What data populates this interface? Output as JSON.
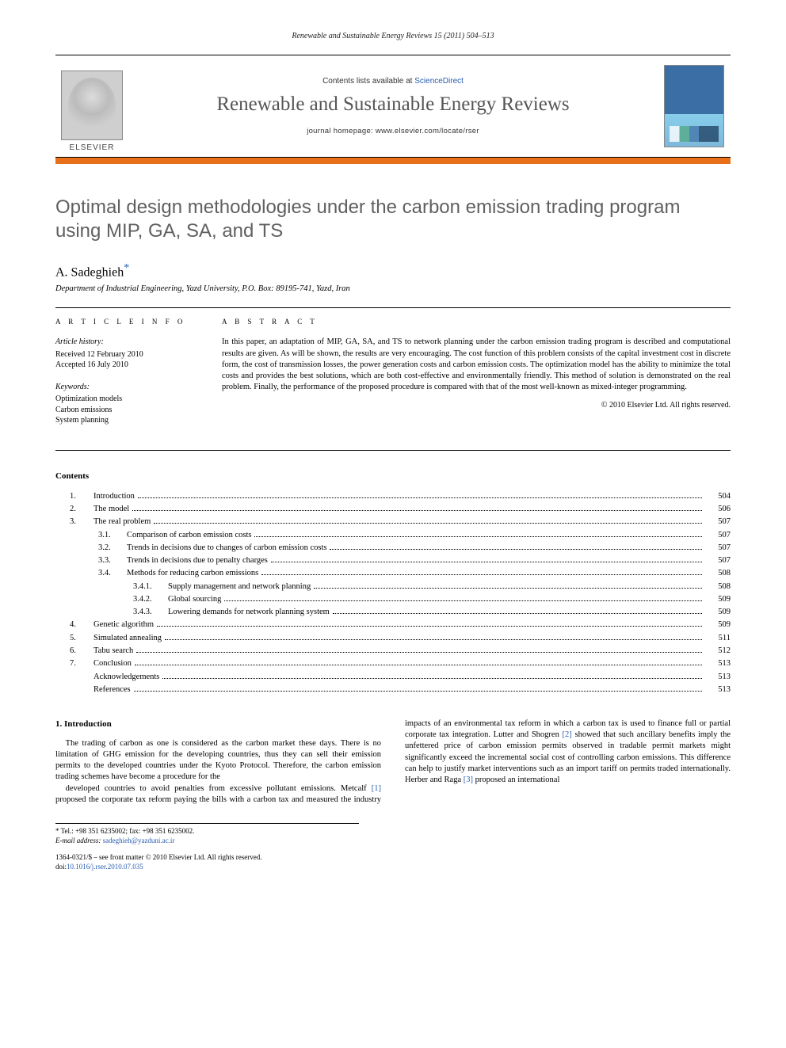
{
  "running_header": "Renewable and Sustainable Energy Reviews 15 (2011) 504–513",
  "masthead": {
    "publisher": "ELSEVIER",
    "contents_prefix": "Contents lists available at ",
    "contents_link": "ScienceDirect",
    "journal_name": "Renewable and Sustainable Energy Reviews",
    "homepage_prefix": "journal homepage: ",
    "homepage_url": "www.elsevier.com/locate/rser"
  },
  "title": "Optimal design methodologies under the carbon emission trading program using MIP, GA, SA, and TS",
  "author": "A. Sadeghieh",
  "corr_marker": "*",
  "affiliation": "Department of Industrial Engineering, Yazd University, P.O. Box: 89195-741, Yazd, Iran",
  "info": {
    "heading": "A R T I C L E   I N F O",
    "history_label": "Article history:",
    "received": "Received 12 February 2010",
    "accepted": "Accepted 16 July 2010",
    "keywords_label": "Keywords:",
    "keywords": [
      "Optimization models",
      "Carbon emissions",
      "System planning"
    ]
  },
  "abstract": {
    "heading": "A B S T R A C T",
    "text": "In this paper, an adaptation of MIP, GA, SA, and TS to network planning under the carbon emission trading program is described and computational results are given. As will be shown, the results are very encouraging. The cost function of this problem consists of the capital investment cost in discrete form, the cost of transmission losses, the power generation costs and carbon emission costs. The optimization model has the ability to minimize the total costs and provides the best solutions, which are both cost-effective and environmentally friendly. This method of solution is demonstrated on the real problem. Finally, the performance of the proposed procedure is compared with that of the most well-known as mixed-integer programming.",
    "copyright": "© 2010 Elsevier Ltd. All rights reserved."
  },
  "contents_heading": "Contents",
  "toc": [
    {
      "lvl": 1,
      "num": "1.",
      "label": "Introduction",
      "page": "504"
    },
    {
      "lvl": 1,
      "num": "2.",
      "label": "The model",
      "page": "506"
    },
    {
      "lvl": 1,
      "num": "3.",
      "label": "The real problem",
      "page": "507"
    },
    {
      "lvl": 2,
      "num": "3.1.",
      "label": "Comparison of carbon emission costs",
      "page": "507"
    },
    {
      "lvl": 2,
      "num": "3.2.",
      "label": "Trends in decisions due to changes of carbon emission costs",
      "page": "507"
    },
    {
      "lvl": 2,
      "num": "3.3.",
      "label": "Trends in decisions due to penalty charges",
      "page": "507"
    },
    {
      "lvl": 2,
      "num": "3.4.",
      "label": "Methods for reducing carbon emissions",
      "page": "508"
    },
    {
      "lvl": 3,
      "num": "3.4.1.",
      "label": "Supply management and network planning",
      "page": "508"
    },
    {
      "lvl": 3,
      "num": "3.4.2.",
      "label": "Global sourcing",
      "page": "509"
    },
    {
      "lvl": 3,
      "num": "3.4.3.",
      "label": "Lowering demands for network planning system",
      "page": "509"
    },
    {
      "lvl": 1,
      "num": "4.",
      "label": "Genetic algorithm",
      "page": "509"
    },
    {
      "lvl": 1,
      "num": "5.",
      "label": "Simulated annealing",
      "page": "511"
    },
    {
      "lvl": 1,
      "num": "6.",
      "label": "Tabu search",
      "page": "512"
    },
    {
      "lvl": 1,
      "num": "7.",
      "label": "Conclusion",
      "page": "513"
    },
    {
      "lvl": 0,
      "num": "",
      "label": "Acknowledgements",
      "page": "513"
    },
    {
      "lvl": 0,
      "num": "",
      "label": "References",
      "page": "513"
    }
  ],
  "body": {
    "section_num": "1.",
    "section_title": "Introduction",
    "col1_text": "The trading of carbon as one is considered as the carbon market these days. There is no limitation of GHG emission for the developing countries, thus they can sell their emission permits to the developed countries under the Kyoto Protocol. Therefore, the carbon emission trading schemes have become a procedure for the",
    "col2_before_ref1": "developed countries to avoid penalties from excessive pollutant emissions. Metcalf ",
    "ref1": "[1]",
    "col2_after_ref1": " proposed the corporate tax reform paying the bills with a carbon tax and measured the industry impacts of an environmental tax reform in which a carbon tax is used to finance full or partial corporate tax integration. Lutter and Shogren ",
    "ref2": "[2]",
    "col2_after_ref2": " showed that such ancillary benefits imply the unfettered price of carbon emission permits observed in tradable permit markets might significantly exceed the incremental social cost of controlling carbon emissions. This difference can help to justify market interventions such as an import tariff on permits traded internationally. Herber and Raga ",
    "ref3": "[3]",
    "col2_after_ref3": " proposed an international"
  },
  "footnote": {
    "corr": "* Tel.: +98 351 6235002; fax: +98 351 6235002.",
    "email_label": "E-mail address:",
    "email": "sadeghieh@yazduni.ac.ir"
  },
  "footer": {
    "issn_line": "1364-0321/$ – see front matter © 2010 Elsevier Ltd. All rights reserved.",
    "doi_prefix": "doi:",
    "doi": "10.1016/j.rser.2010.07.035"
  },
  "colors": {
    "accent_orange": "#e8701a",
    "link_blue": "#2a5db0",
    "title_gray": "#606060"
  }
}
